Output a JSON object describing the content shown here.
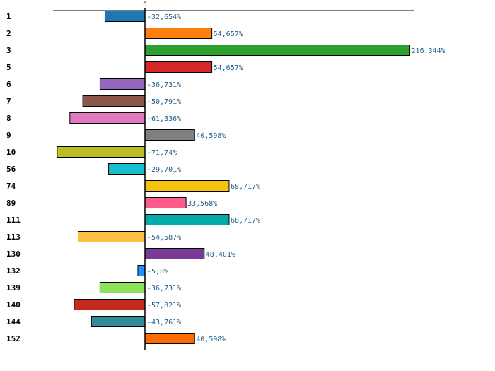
{
  "chart_data": {
    "type": "bar",
    "orientation": "horizontal",
    "title": "",
    "xlabel": "",
    "ylabel": "",
    "xlim": [
      -100,
      300
    ],
    "x_tick_labels": [
      "0"
    ],
    "grid": false,
    "legend": "none",
    "categories": [
      "1",
      "2",
      "3",
      "5",
      "6",
      "7",
      "8",
      "9",
      "10",
      "56",
      "74",
      "89",
      "111",
      "113",
      "130",
      "132",
      "139",
      "140",
      "144",
      "152"
    ],
    "values": [
      -32.654,
      54.657,
      216.344,
      54.657,
      -36.731,
      -50.791,
      -61.336,
      40.598,
      -71.74,
      -29.701,
      68.717,
      33.568,
      68.717,
      -54.587,
      48.401,
      -5.8,
      -36.731,
      -57.821,
      -43.761,
      40.598
    ],
    "value_labels": [
      "-32,654%",
      "54,657%",
      "216,344%",
      "54,657%",
      "-36,731%",
      "-50,791%",
      "-61,336%",
      "40,598%",
      "-71,74%",
      "-29,701%",
      "68,717%",
      "33,568%",
      "68,717%",
      "-54,587%",
      "48,401%",
      "-5,8%",
      "-36,731%",
      "-57,821%",
      "-43,761%",
      "40,598%"
    ],
    "colors": [
      "#1f77b4",
      "#ff7f0e",
      "#2ca02c",
      "#d62728",
      "#9467bd",
      "#8c564b",
      "#e377c2",
      "#7f7f7f",
      "#bcbd22",
      "#17becf",
      "#f5c211",
      "#ff5a8c",
      "#00aba9",
      "#ffbe45",
      "#7a3b96",
      "#1e90ff",
      "#8fe35a",
      "#c42b1c",
      "#2f8a9a",
      "#ff6a00"
    ],
    "value_label_color": "#1f5f8f"
  }
}
